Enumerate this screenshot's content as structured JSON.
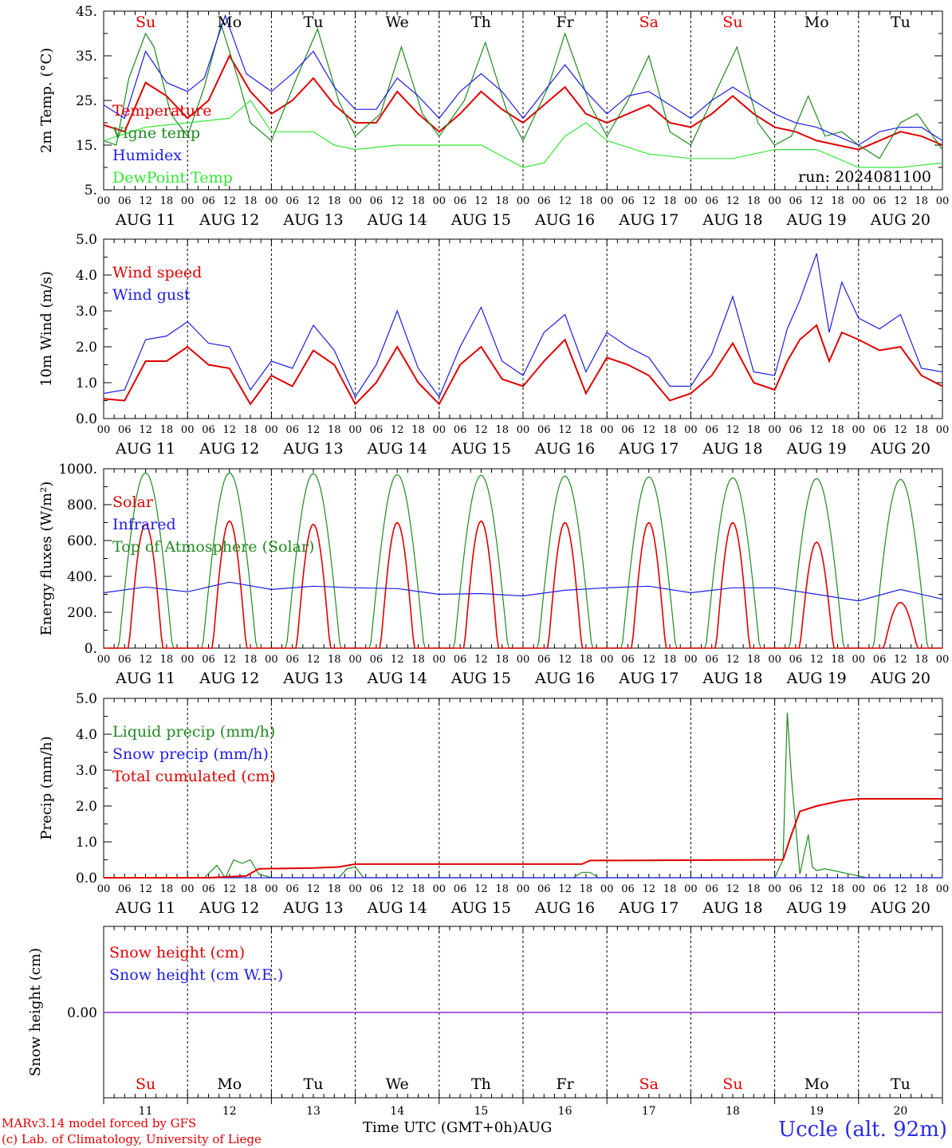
{
  "days": [
    "AUG 11",
    "AUG 12",
    "AUG 13",
    "AUG 14",
    "AUG 15",
    "AUG 16",
    "AUG 17",
    "AUG 18",
    "AUG 19",
    "AUG 20"
  ],
  "hour_ticks": [
    "00",
    "06",
    "12",
    "18"
  ],
  "weekdays": [
    "Su",
    "Mo",
    "Tu",
    "We",
    "Th",
    "Fr",
    "Sa",
    "Su",
    "Mo",
    "Tu"
  ],
  "weekday_colors": [
    "#e00000",
    "#000000",
    "#000000",
    "#000000",
    "#000000",
    "#000000",
    "#e00000",
    "#e00000",
    "#000000",
    "#000000"
  ],
  "day_numbers": [
    "11",
    "12",
    "13",
    "14",
    "15",
    "16",
    "17",
    "18",
    "19",
    "20"
  ],
  "run_label": "run: 2024081100",
  "xlabel": "Time UTC (GMT+0h)",
  "month": "AUG",
  "credits": [
    "MARv3.14 model forced by GFS",
    "(c) Lab. of Climatology, University of Liege"
  ],
  "station": "Uccle (alt. 92m)",
  "colors": {
    "red": "#e00000",
    "green": "#1f8a1f",
    "blue": "#1e1ee6",
    "lightgreen": "#33e633",
    "purple": "#8a2be2"
  },
  "chart_data": [
    {
      "type": "line",
      "ylabel": "2m Temp. (°C)",
      "ylim": [
        5,
        45
      ],
      "yticks": [
        "5.",
        "15.",
        "25.",
        "35.",
        "45."
      ],
      "x_unit": "days since AUG 11 00UTC",
      "series": [
        {
          "name": "Temperature",
          "color": "red",
          "x": [
            0,
            0.25,
            0.5,
            0.75,
            1,
            1.25,
            1.5,
            1.75,
            2,
            2.25,
            2.5,
            2.75,
            3,
            3.25,
            3.5,
            3.75,
            4,
            4.25,
            4.5,
            4.75,
            5,
            5.25,
            5.5,
            5.75,
            6,
            6.25,
            6.5,
            6.75,
            7,
            7.25,
            7.5,
            7.75,
            8,
            8.25,
            8.5,
            8.75,
            9,
            9.25,
            9.5,
            9.75,
            10
          ],
          "y": [
            19.5,
            18,
            29,
            26,
            21,
            25,
            35,
            27,
            22,
            25,
            30,
            24,
            20,
            20,
            27,
            22,
            18,
            22,
            27,
            23,
            20,
            24,
            28,
            22,
            20,
            22,
            24,
            20,
            19,
            22,
            26,
            22,
            19,
            18,
            16,
            15,
            14,
            16,
            18,
            17,
            15
          ]
        },
        {
          "name": "Vigne temp",
          "color": "green",
          "x": [
            0,
            0.15,
            0.3,
            0.5,
            0.6,
            0.8,
            1,
            1.2,
            1.4,
            1.6,
            1.75,
            2,
            2.3,
            2.55,
            2.8,
            3,
            3.3,
            3.55,
            3.8,
            4,
            4.3,
            4.55,
            4.8,
            5,
            5.3,
            5.5,
            5.8,
            6,
            6.25,
            6.5,
            6.75,
            7,
            7.25,
            7.55,
            7.8,
            8,
            8.2,
            8.4,
            8.6,
            8.8,
            9,
            9.25,
            9.5,
            9.7,
            10
          ],
          "y": [
            16,
            15,
            30,
            40,
            37,
            22,
            17,
            28,
            42,
            30,
            20,
            16,
            30,
            41,
            25,
            17,
            22,
            37,
            22,
            17,
            25,
            38,
            23,
            16,
            28,
            40,
            24,
            17,
            25,
            35,
            18,
            15,
            25,
            37,
            20,
            15,
            17,
            26,
            17,
            18,
            15,
            12,
            20,
            22,
            14
          ]
        },
        {
          "name": "Humidex",
          "color": "blue",
          "x": [
            0,
            0.25,
            0.5,
            0.75,
            1,
            1.2,
            1.45,
            1.7,
            2,
            2.25,
            2.5,
            2.75,
            3,
            3.25,
            3.5,
            3.75,
            4,
            4.25,
            4.5,
            4.75,
            5,
            5.25,
            5.5,
            5.75,
            6,
            6.25,
            6.5,
            6.75,
            7,
            7.25,
            7.5,
            7.75,
            8,
            8.25,
            8.5,
            8.75,
            9,
            9.25,
            9.5,
            9.75,
            10
          ],
          "y": [
            24,
            21,
            36,
            29,
            27,
            30,
            44,
            31,
            27,
            31,
            36,
            28,
            23,
            23,
            30,
            26,
            21,
            27,
            31,
            27,
            21,
            27,
            33,
            27,
            22,
            26,
            27,
            24,
            21,
            25,
            28,
            25,
            22,
            20,
            19,
            17,
            15,
            18,
            19,
            19,
            16
          ]
        },
        {
          "name": "DewPoint Temp",
          "color": "lightgreen",
          "x": [
            0,
            0.5,
            1,
            1.5,
            1.75,
            2,
            2.5,
            2.75,
            3,
            3.5,
            4,
            4.5,
            5,
            5.25,
            5.5,
            5.75,
            6,
            6.5,
            7,
            7.5,
            8,
            8.5,
            9,
            9.5,
            10
          ],
          "y": [
            16,
            19,
            20,
            21,
            25,
            18,
            18,
            15,
            14,
            15,
            15,
            15,
            10,
            11,
            17,
            20,
            16,
            13,
            12,
            12,
            14,
            14,
            10,
            10,
            11
          ]
        }
      ]
    },
    {
      "type": "line",
      "ylabel": "10m Wind (m/s)",
      "ylim": [
        0,
        5
      ],
      "yticks": [
        "0.0",
        "1.0",
        "2.0",
        "3.0",
        "4.0",
        "5.0"
      ],
      "series": [
        {
          "name": "Wind speed",
          "color": "red",
          "x": [
            0,
            0.25,
            0.5,
            0.75,
            1,
            1.25,
            1.5,
            1.75,
            2,
            2.25,
            2.5,
            2.75,
            3,
            3.25,
            3.5,
            3.75,
            4,
            4.25,
            4.5,
            4.75,
            5,
            5.25,
            5.5,
            5.75,
            6,
            6.25,
            6.5,
            6.75,
            7,
            7.25,
            7.5,
            7.75,
            8,
            8.15,
            8.3,
            8.5,
            8.65,
            8.8,
            9,
            9.25,
            9.5,
            9.75,
            10
          ],
          "y": [
            0.55,
            0.5,
            1.6,
            1.6,
            2.0,
            1.5,
            1.4,
            0.4,
            1.2,
            0.9,
            1.9,
            1.5,
            0.4,
            1.0,
            2.0,
            1.0,
            0.4,
            1.5,
            2.0,
            1.1,
            0.9,
            1.6,
            2.2,
            0.7,
            1.7,
            1.5,
            1.2,
            0.5,
            0.7,
            1.2,
            2.1,
            1.0,
            0.8,
            1.6,
            2.2,
            2.6,
            1.6,
            2.4,
            2.2,
            1.9,
            2.0,
            1.2,
            0.9
          ]
        },
        {
          "name": "Wind gust",
          "color": "blue",
          "x": [
            0,
            0.25,
            0.5,
            0.75,
            1,
            1.25,
            1.5,
            1.75,
            2,
            2.25,
            2.5,
            2.75,
            3,
            3.25,
            3.5,
            3.75,
            4,
            4.25,
            4.5,
            4.75,
            5,
            5.25,
            5.5,
            5.75,
            6,
            6.25,
            6.5,
            6.75,
            7,
            7.25,
            7.5,
            7.75,
            8,
            8.15,
            8.3,
            8.5,
            8.65,
            8.8,
            9,
            9.25,
            9.5,
            9.75,
            10
          ],
          "y": [
            0.7,
            0.8,
            2.2,
            2.3,
            2.7,
            2.1,
            2.0,
            0.8,
            1.6,
            1.4,
            2.6,
            1.9,
            0.6,
            1.5,
            3.0,
            1.4,
            0.6,
            2.0,
            3.1,
            1.6,
            1.2,
            2.4,
            2.9,
            1.3,
            2.4,
            2.0,
            1.7,
            0.9,
            0.9,
            1.8,
            3.4,
            1.3,
            1.2,
            2.5,
            3.3,
            4.6,
            2.4,
            3.8,
            2.8,
            2.5,
            2.9,
            1.4,
            1.3
          ]
        }
      ]
    },
    {
      "type": "line",
      "ylabel": "Energy fluxes (W/m²)",
      "ylim": [
        0,
        1100
      ],
      "yticks": [
        "0.",
        "200.",
        "400.",
        "600.",
        "800.",
        "1000."
      ],
      "series": [
        {
          "name": "Solar",
          "color": "red",
          "peaks": [
            760,
            780,
            760,
            770,
            780,
            770,
            770,
            770,
            650,
            280
          ],
          "peak_sigma": 0.1
        },
        {
          "name": "Infrared",
          "color": "blue",
          "x": [
            0,
            0.5,
            1,
            1.5,
            2,
            2.5,
            3,
            3.5,
            4,
            4.5,
            5,
            5.5,
            6,
            6.5,
            7,
            7.5,
            8,
            8.5,
            9,
            9.5,
            10
          ],
          "y": [
            340,
            375,
            345,
            405,
            360,
            380,
            370,
            365,
            330,
            335,
            320,
            355,
            370,
            380,
            340,
            370,
            370,
            330,
            290,
            360,
            300
          ]
        },
        {
          "name": "Top of Atmosphere (Solar)",
          "color": "green",
          "peaks": [
            1075,
            1075,
            1070,
            1065,
            1060,
            1055,
            1050,
            1045,
            1040,
            1035
          ],
          "peak_sigma": 0.2
        }
      ]
    },
    {
      "type": "line",
      "ylabel": "Precip (mm/h)",
      "ylim": [
        0,
        5
      ],
      "yticks": [
        "0.0",
        "1.0",
        "2.0",
        "3.0",
        "4.0",
        "5.0"
      ],
      "series": [
        {
          "name": "Liquid precip (mm/h)",
          "color": "green",
          "x": [
            0,
            1.2,
            1.35,
            1.45,
            1.55,
            1.65,
            1.75,
            1.85,
            2,
            2.8,
            2.9,
            3.0,
            3.1,
            5.6,
            5.7,
            5.8,
            5.9,
            8.0,
            8.1,
            8.15,
            8.2,
            8.3,
            8.4,
            8.45,
            8.5,
            8.6,
            9.0,
            9.1,
            10
          ],
          "y": [
            0,
            0,
            0.35,
            0,
            0.5,
            0.4,
            0.5,
            0.1,
            0,
            0,
            0.25,
            0.3,
            0,
            0,
            0.15,
            0.15,
            0,
            0,
            0.5,
            4.6,
            2.8,
            0.1,
            1.2,
            0.3,
            0.2,
            0.25,
            0.05,
            0,
            0
          ]
        },
        {
          "name": "Snow precip (mm/h)",
          "color": "blue",
          "x": [
            0,
            10
          ],
          "y": [
            0,
            0
          ]
        },
        {
          "name": "Total cumulated (cm)",
          "color": "red",
          "x": [
            0,
            1.25,
            1.7,
            1.85,
            2.5,
            2.8,
            3.0,
            5.7,
            5.8,
            8.0,
            8.1,
            8.2,
            8.3,
            8.5,
            8.8,
            9.0,
            10
          ],
          "y": [
            0,
            0,
            0.05,
            0.25,
            0.27,
            0.3,
            0.38,
            0.38,
            0.48,
            0.5,
            0.5,
            1.2,
            1.85,
            2.0,
            2.15,
            2.2,
            2.2
          ]
        }
      ]
    },
    {
      "type": "line",
      "ylabel": "Snow height (cm)",
      "yticks": [
        "0.00"
      ],
      "series": [
        {
          "name": "Snow height (cm)",
          "color": "red",
          "x": [
            0,
            10
          ],
          "y": [
            0,
            0
          ]
        },
        {
          "name": "Snow height (cm W.E.)",
          "color": "blue",
          "x": [
            0,
            10
          ],
          "y": [
            0,
            0
          ]
        }
      ]
    }
  ]
}
